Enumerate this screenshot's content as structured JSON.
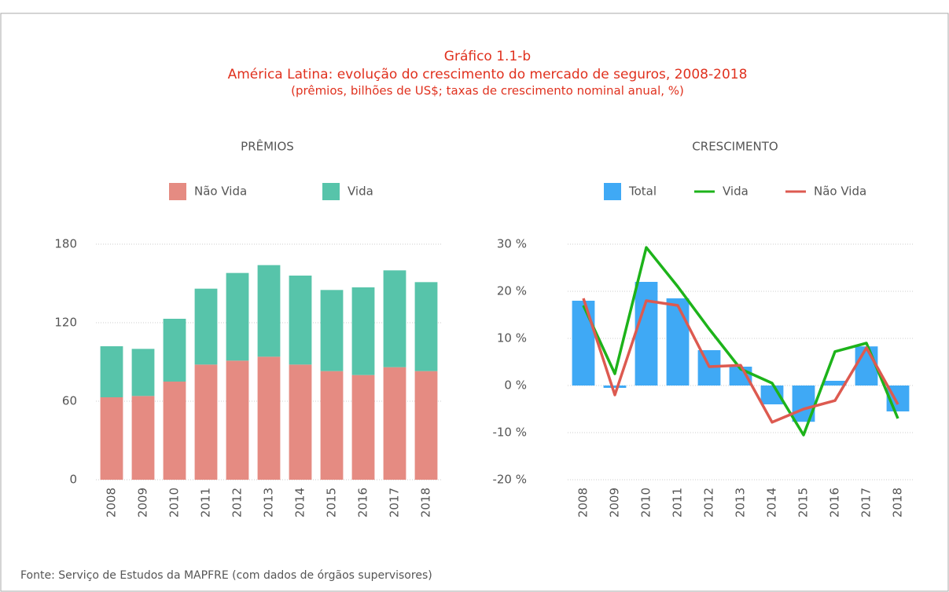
{
  "title": "Gráfico 1.1-b",
  "subtitle": "América Latina: evolução do crescimento do mercado de seguros, 2008-2018",
  "note": "(prêmios, bilhões de US$; taxas de crescimento nominal anual, %)",
  "source": "Fonte: Serviço de Estudos da MAPFRE (com dados de órgãos supervisores)",
  "chart_data": [
    {
      "type": "bar",
      "stacked": true,
      "title": "PRÊMIOS",
      "categories": [
        "2008",
        "2009",
        "2010",
        "2011",
        "2012",
        "2013",
        "2014",
        "2015",
        "2016",
        "2017",
        "2018"
      ],
      "series": [
        {
          "name": "Não Vida",
          "color": "#e58b82",
          "values": [
            63,
            64,
            75,
            88,
            91,
            94,
            88,
            83,
            80,
            86,
            83
          ]
        },
        {
          "name": "Vida",
          "color": "#57c4aa",
          "values": [
            39,
            36,
            48,
            58,
            67,
            70,
            68,
            62,
            67,
            74,
            68
          ]
        }
      ],
      "ylim": [
        0,
        180
      ],
      "yticks": [
        0,
        60,
        120,
        180
      ],
      "grid": true
    },
    {
      "type": "bar",
      "title": "CRESCIMENTO",
      "categories": [
        "2008",
        "2009",
        "2010",
        "2011",
        "2012",
        "2013",
        "2014",
        "2015",
        "2016",
        "2017",
        "2018"
      ],
      "series": [
        {
          "name": "Total",
          "type": "bar",
          "color": "#3fa9f5",
          "values": [
            18,
            -0.5,
            22,
            18.5,
            7.5,
            4,
            -4,
            -7.7,
            1,
            8.3,
            -5.5
          ]
        },
        {
          "name": "Vida",
          "type": "line",
          "color": "#1db31a",
          "values": [
            17,
            2.5,
            29.3,
            21,
            12,
            3.5,
            0.5,
            -10.5,
            7.2,
            9,
            -7
          ]
        },
        {
          "name": "Não Vida",
          "type": "line",
          "color": "#dd5a50",
          "values": [
            18.5,
            -2,
            18,
            17,
            4,
            4.3,
            -7.8,
            -5,
            -3.2,
            8,
            -4
          ]
        }
      ],
      "ylim": [
        -20,
        30
      ],
      "yticks": [
        {
          "value": -20,
          "label": "-20 %"
        },
        {
          "value": -10,
          "label": "-10 %"
        },
        {
          "value": 0,
          "label": "0 %"
        },
        {
          "value": 10,
          "label": "10 %"
        },
        {
          "value": 20,
          "label": "20 %"
        },
        {
          "value": 30,
          "label": "30 %"
        }
      ],
      "grid": true
    }
  ]
}
